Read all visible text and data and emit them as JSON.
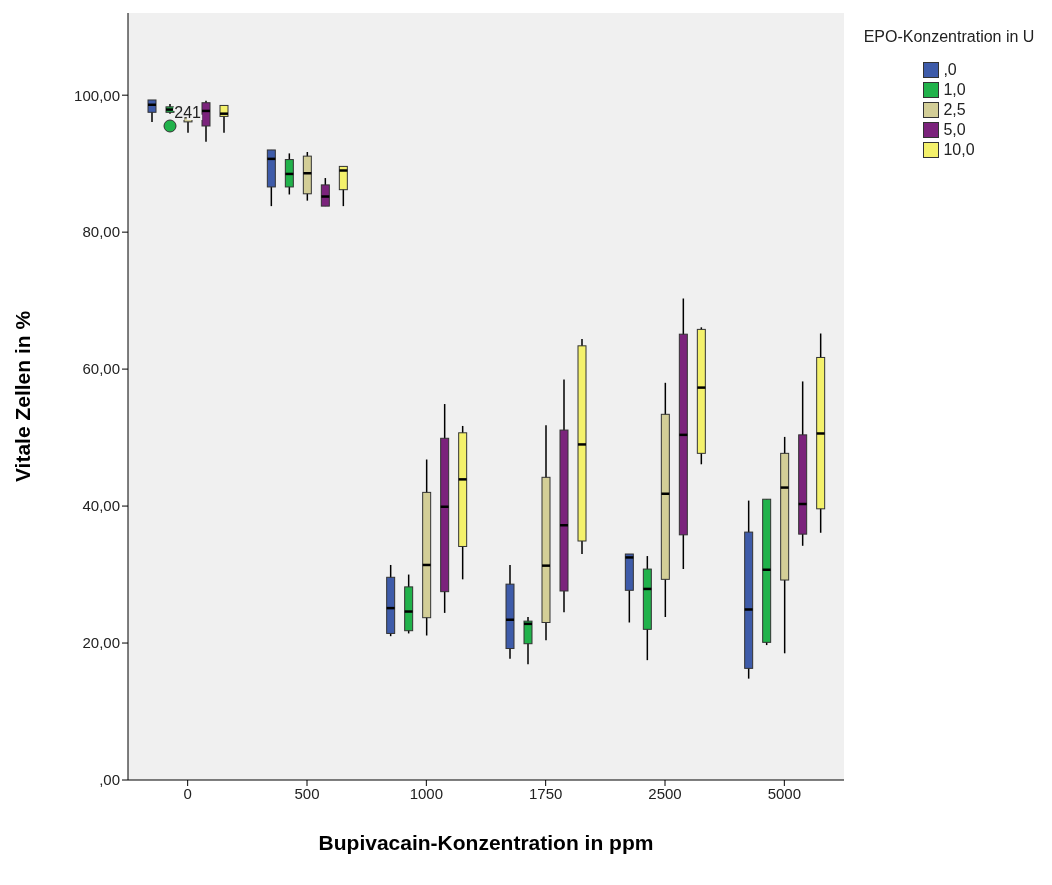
{
  "chart_data": {
    "type": "box",
    "xlabel": "Bupivacain-Konzentration in ppm",
    "ylabel": "Vitale Zellen in %",
    "legend_title": "EPO-Konzentration in U",
    "legend": "top right",
    "grid": false,
    "categories": [
      "0",
      "500",
      "1000",
      "1750",
      "2500",
      "5000"
    ],
    "ylim": [
      0,
      112
    ],
    "yticks": [
      {
        "value": 0,
        "label": ",00"
      },
      {
        "value": 20,
        "label": "20,00"
      },
      {
        "value": 40,
        "label": "40,00"
      },
      {
        "value": 60,
        "label": "60,00"
      },
      {
        "value": 80,
        "label": "80,00"
      },
      {
        "value": 100,
        "label": "100,00"
      }
    ],
    "annotations": [
      {
        "text": "241",
        "x": "0",
        "y": 97.5
      }
    ],
    "series": [
      {
        "name": ",0",
        "color": "#3e5ba9",
        "boxes": [
          {
            "low": 96.1,
            "q1": 97.5,
            "median": 98.6,
            "q3": 99.3,
            "high": 99.3
          },
          {
            "low": 83.8,
            "q1": 86.6,
            "median": 90.7,
            "q3": 92.0,
            "high": 92.0
          },
          {
            "low": 21.0,
            "q1": 21.4,
            "median": 25.1,
            "q3": 29.6,
            "high": 31.4
          },
          {
            "low": 17.7,
            "q1": 19.2,
            "median": 23.4,
            "q3": 28.6,
            "high": 31.4
          },
          {
            "low": 23.0,
            "q1": 27.7,
            "median": 32.5,
            "q3": 33.0,
            "high": 33.0
          },
          {
            "low": 14.8,
            "q1": 16.3,
            "median": 24.9,
            "q3": 36.2,
            "high": 40.8
          }
        ]
      },
      {
        "name": "1,0",
        "color": "#21b24b",
        "boxes": [
          {
            "low": 97.3,
            "q1": 97.5,
            "median": 97.9,
            "q3": 98.3,
            "high": 98.7,
            "outliers": [
              95.5
            ]
          },
          {
            "low": 85.5,
            "q1": 86.6,
            "median": 88.5,
            "q3": 90.6,
            "high": 91.5
          },
          {
            "low": 21.4,
            "q1": 21.8,
            "median": 24.6,
            "q3": 28.2,
            "high": 30.0
          },
          {
            "low": 16.9,
            "q1": 19.9,
            "median": 22.8,
            "q3": 23.2,
            "high": 23.8
          },
          {
            "low": 17.5,
            "q1": 22.0,
            "median": 27.9,
            "q3": 30.8,
            "high": 32.7
          },
          {
            "low": 19.7,
            "q1": 20.1,
            "median": 30.7,
            "q3": 41.0,
            "high": 41.0
          }
        ]
      },
      {
        "name": "2,5",
        "color": "#d3ce97",
        "boxes": [
          {
            "low": 94.5,
            "q1": 96.1,
            "median": 96.8,
            "q3": 97.5,
            "high": 98.3
          },
          {
            "low": 84.6,
            "q1": 85.6,
            "median": 88.6,
            "q3": 91.1,
            "high": 91.7
          },
          {
            "low": 21.1,
            "q1": 23.7,
            "median": 31.4,
            "q3": 42.0,
            "high": 46.8
          },
          {
            "low": 20.4,
            "q1": 23.0,
            "median": 31.3,
            "q3": 44.2,
            "high": 51.8
          },
          {
            "low": 23.8,
            "q1": 29.3,
            "median": 41.8,
            "q3": 53.4,
            "high": 58.0
          },
          {
            "low": 18.5,
            "q1": 29.2,
            "median": 42.7,
            "q3": 47.7,
            "high": 50.1
          }
        ]
      },
      {
        "name": "5,0",
        "color": "#7b237c",
        "boxes": [
          {
            "low": 93.2,
            "q1": 95.5,
            "median": 97.7,
            "q3": 98.9,
            "high": 99.2
          },
          {
            "low": 83.8,
            "q1": 83.8,
            "median": 85.2,
            "q3": 86.9,
            "high": 87.9
          },
          {
            "low": 24.4,
            "q1": 27.5,
            "median": 39.9,
            "q3": 49.9,
            "high": 54.9
          },
          {
            "low": 24.5,
            "q1": 27.6,
            "median": 37.2,
            "q3": 51.1,
            "high": 58.5
          },
          {
            "low": 30.8,
            "q1": 35.8,
            "median": 50.4,
            "q3": 65.1,
            "high": 70.3
          },
          {
            "low": 34.2,
            "q1": 35.9,
            "median": 40.3,
            "q3": 50.4,
            "high": 58.2
          }
        ]
      },
      {
        "name": "10,0",
        "color": "#f4f16b",
        "boxes": [
          {
            "low": 94.5,
            "q1": 96.9,
            "median": 97.3,
            "q3": 98.5,
            "high": 98.5
          },
          {
            "low": 83.8,
            "q1": 86.2,
            "median": 89.0,
            "q3": 89.6,
            "high": 89.6
          },
          {
            "low": 29.3,
            "q1": 34.1,
            "median": 43.9,
            "q3": 50.7,
            "high": 51.7
          },
          {
            "low": 33.0,
            "q1": 34.9,
            "median": 49.0,
            "q3": 63.4,
            "high": 64.4
          },
          {
            "low": 46.1,
            "q1": 47.7,
            "median": 57.3,
            "q3": 65.8,
            "high": 66.1
          },
          {
            "low": 36.1,
            "q1": 39.6,
            "median": 50.6,
            "q3": 61.7,
            "high": 65.2
          }
        ]
      }
    ]
  }
}
